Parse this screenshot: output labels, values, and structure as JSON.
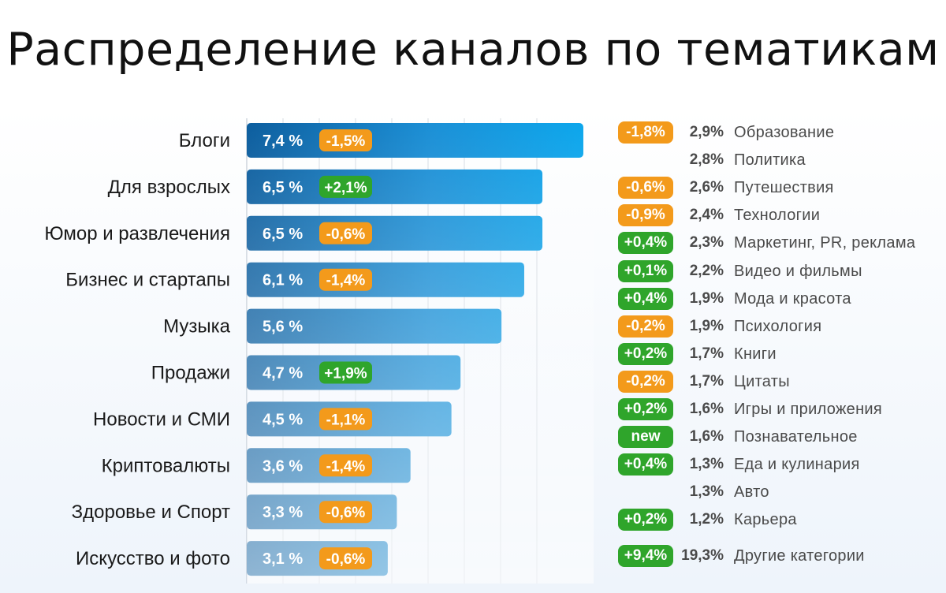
{
  "colors": {
    "positive": "#2fa52b",
    "negative": "#f39a1b",
    "new": "#2fa52b"
  },
  "chart_data": {
    "type": "bar",
    "title": "Распределение каналов по тематикам",
    "orientation": "horizontal",
    "unit": "%",
    "xlim": [
      0,
      8
    ],
    "grid": true,
    "bars": [
      {
        "category": "Блоги",
        "value": 7.4,
        "label": "7,4 %",
        "change": "-1,5%",
        "change_type": "negative"
      },
      {
        "category": "Для взрослых",
        "value": 6.5,
        "label": "6,5 %",
        "change": "+2,1%",
        "change_type": "positive"
      },
      {
        "category": "Юмор и развлечения",
        "value": 6.5,
        "label": "6,5 %",
        "change": "-0,6%",
        "change_type": "negative"
      },
      {
        "category": "Бизнес и стартапы",
        "value": 6.1,
        "label": "6,1 %",
        "change": "-1,4%",
        "change_type": "negative"
      },
      {
        "category": "Музыка",
        "value": 5.6,
        "label": "5,6 %",
        "change": "",
        "change_type": "none"
      },
      {
        "category": "Продажи",
        "value": 4.7,
        "label": "4,7 %",
        "change": "+1,9%",
        "change_type": "positive"
      },
      {
        "category": "Новости и СМИ",
        "value": 4.5,
        "label": "4,5 %",
        "change": "-1,1%",
        "change_type": "negative"
      },
      {
        "category": "Криптовалюты",
        "value": 3.6,
        "label": "3,6 %",
        "change": "-1,4%",
        "change_type": "negative"
      },
      {
        "category": "Здоровье и Спорт",
        "value": 3.3,
        "label": "3,3 %",
        "change": "-0,6%",
        "change_type": "negative"
      },
      {
        "category": "Искусство и фото",
        "value": 3.1,
        "label": "3,1 %",
        "change": "-0,6%",
        "change_type": "negative"
      }
    ],
    "side_list": [
      {
        "change": "-1,8%",
        "change_type": "negative",
        "pct": "2,9%",
        "name": "Образование"
      },
      {
        "change": "",
        "change_type": "none",
        "pct": "2,8%",
        "name": "Политика"
      },
      {
        "change": "-0,6%",
        "change_type": "negative",
        "pct": "2,6%",
        "name": "Путешествия"
      },
      {
        "change": "-0,9%",
        "change_type": "negative",
        "pct": "2,4%",
        "name": "Технологии"
      },
      {
        "change": "+0,4%",
        "change_type": "positive",
        "pct": "2,3%",
        "name": "Маркетинг, PR, реклама"
      },
      {
        "change": "+0,1%",
        "change_type": "positive",
        "pct": "2,2%",
        "name": "Видео и фильмы"
      },
      {
        "change": "+0,4%",
        "change_type": "positive",
        "pct": "1,9%",
        "name": "Мода и красота"
      },
      {
        "change": "-0,2%",
        "change_type": "negative",
        "pct": "1,9%",
        "name": "Психология"
      },
      {
        "change": "+0,2%",
        "change_type": "positive",
        "pct": "1,7%",
        "name": "Книги"
      },
      {
        "change": "-0,2%",
        "change_type": "negative",
        "pct": "1,7%",
        "name": "Цитаты"
      },
      {
        "change": "+0,2%",
        "change_type": "positive",
        "pct": "1,6%",
        "name": "Игры и приложения"
      },
      {
        "change": "new",
        "change_type": "new",
        "pct": "1,6%",
        "name": "Познавательное"
      },
      {
        "change": "+0,4%",
        "change_type": "positive",
        "pct": "1,3%",
        "name": "Еда и кулинария"
      },
      {
        "change": "",
        "change_type": "none",
        "pct": "1,3%",
        "name": "Авто"
      },
      {
        "change": "+0,2%",
        "change_type": "positive",
        "pct": "1,2%",
        "name": "Карьера"
      },
      {
        "change": "+9,4%",
        "change_type": "positive",
        "pct": "19,3%",
        "name": "Другие категории"
      }
    ]
  }
}
